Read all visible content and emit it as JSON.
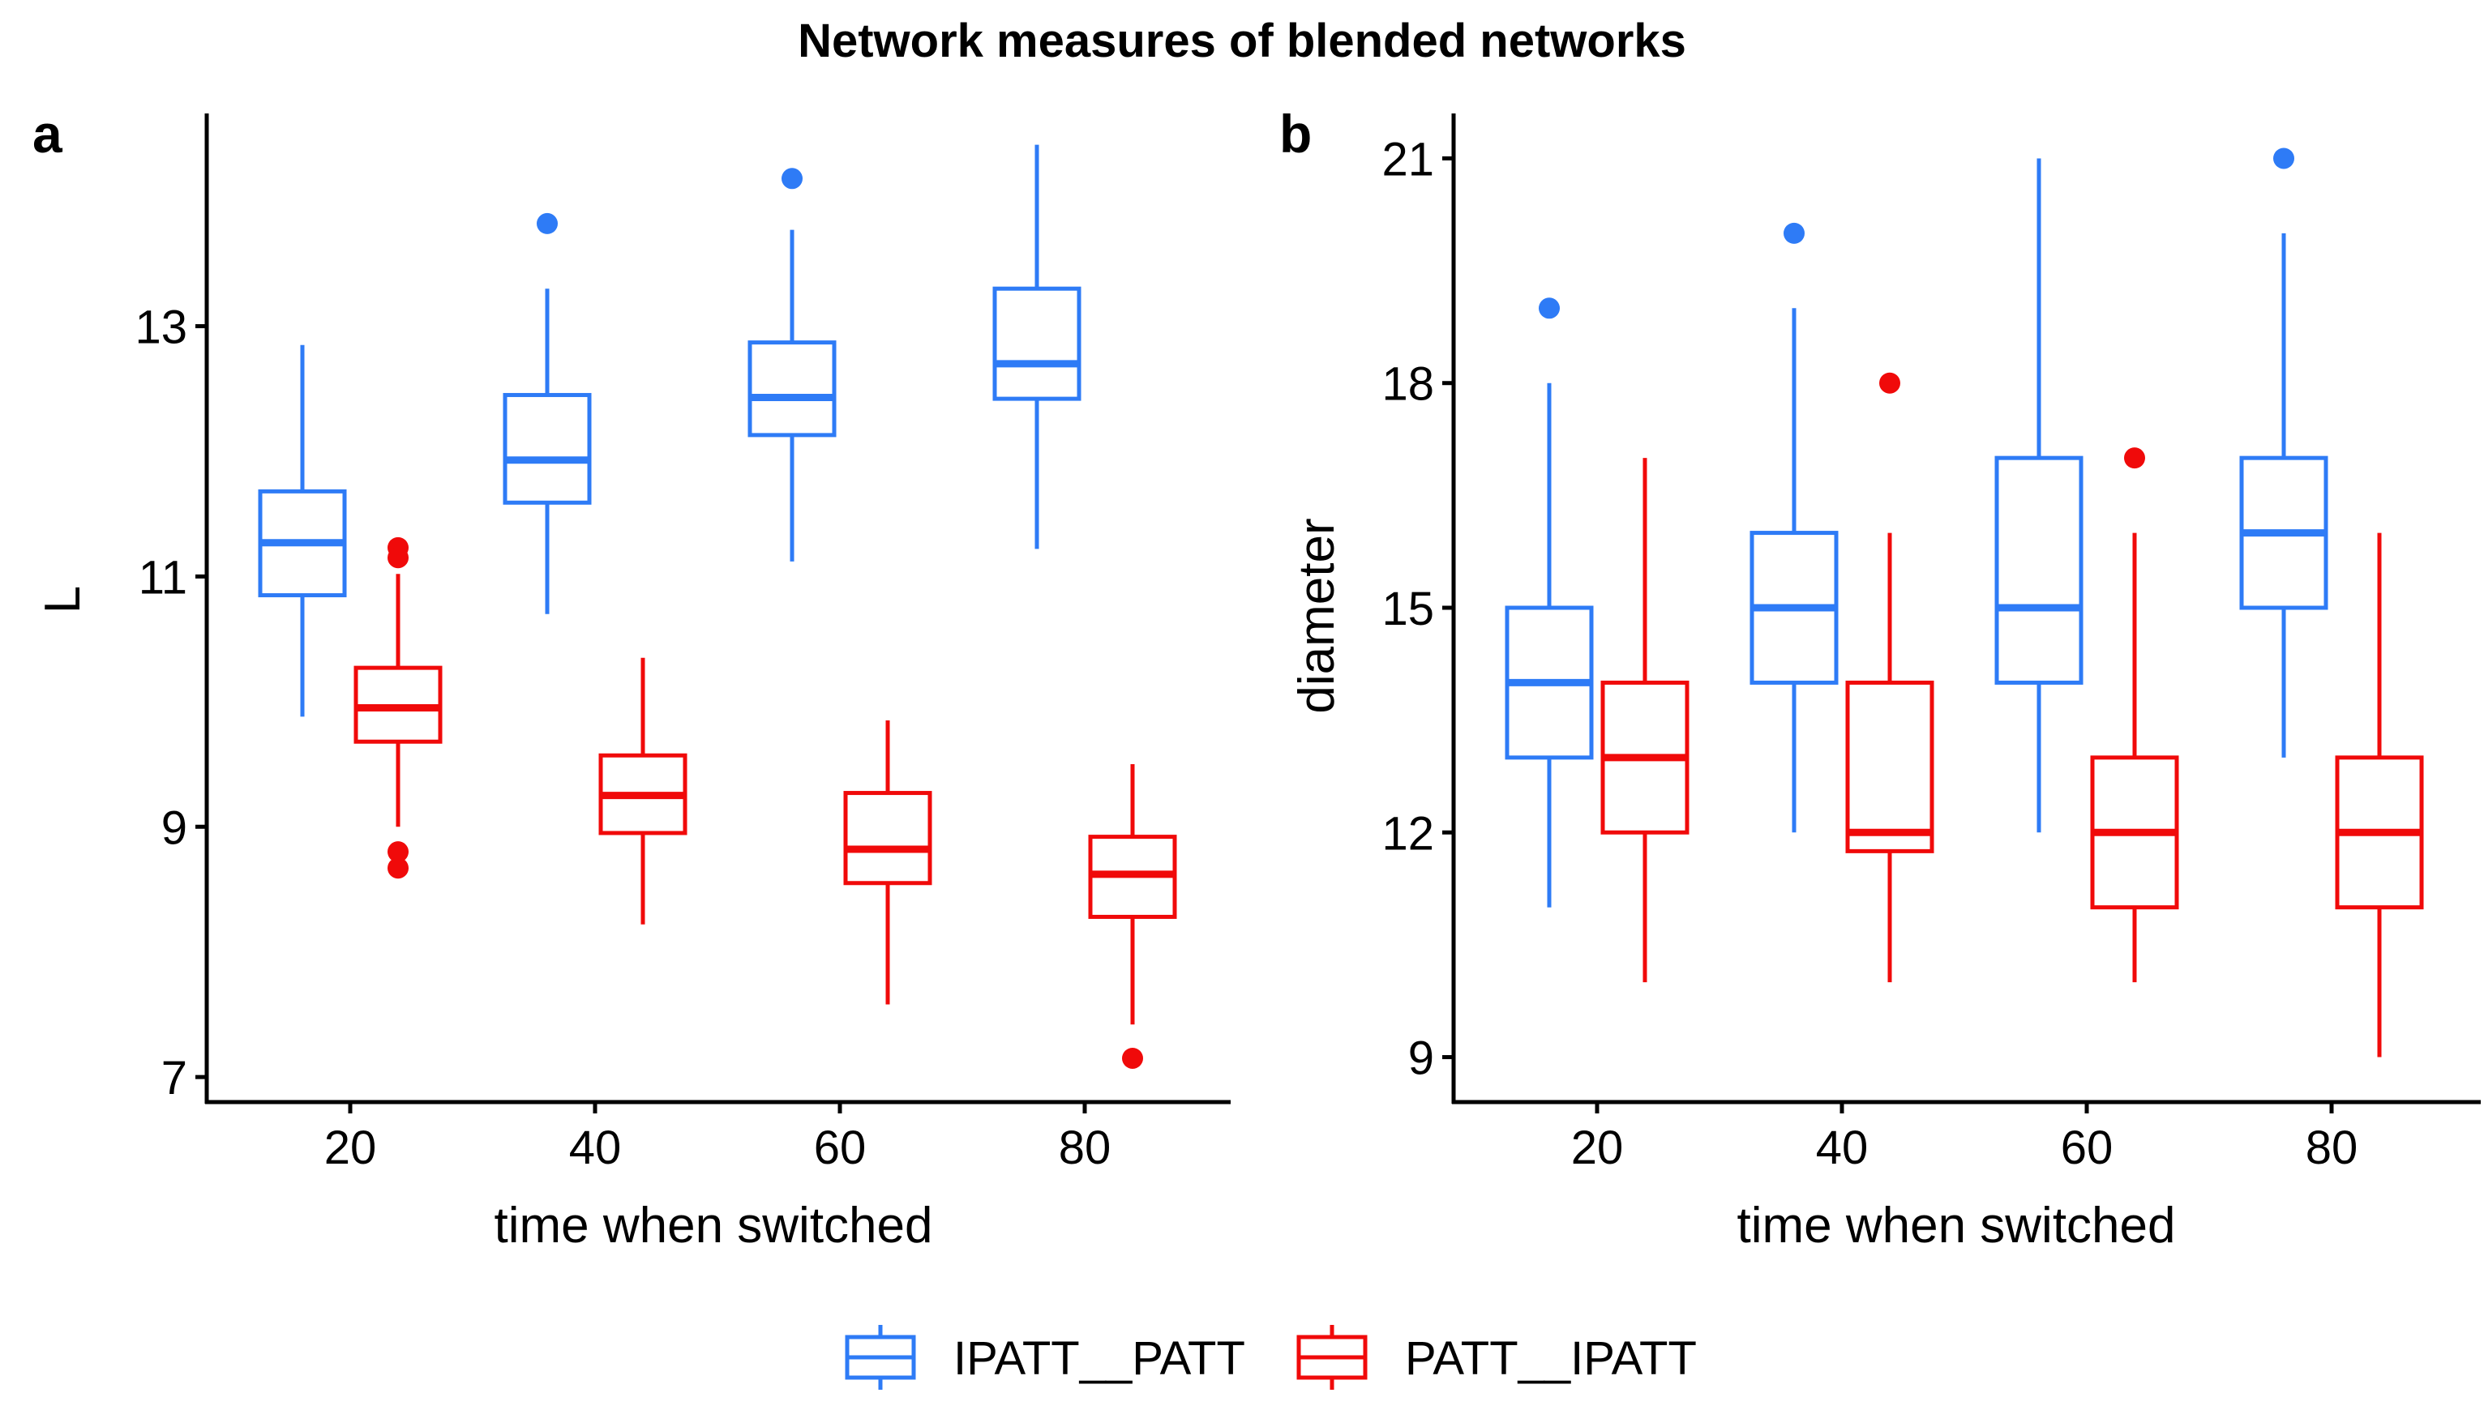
{
  "title": "Network measures of blended networks",
  "legend": [
    {
      "name": "IPATT__PATT",
      "color": "#2E7BF6"
    },
    {
      "name": "PATT__IPATT",
      "color": "#F00A0A"
    }
  ],
  "chart_data": [
    {
      "type": "box",
      "panel": "a",
      "xlabel": "time when switched",
      "ylabel": "L",
      "categories": [
        "20",
        "40",
        "60",
        "80"
      ],
      "ylim": [
        6.8,
        14.7
      ],
      "yticks": [
        7,
        9,
        11,
        13
      ],
      "series": [
        {
          "name": "IPATT__PATT",
          "color": "#2E7BF6",
          "boxes": [
            {
              "min": 9.88,
              "q1": 10.85,
              "median": 11.27,
              "q3": 11.68,
              "max": 12.85,
              "outliers": []
            },
            {
              "min": 10.7,
              "q1": 11.59,
              "median": 11.93,
              "q3": 12.45,
              "max": 13.3,
              "outliers": [
                13.82
              ]
            },
            {
              "min": 11.12,
              "q1": 12.13,
              "median": 12.43,
              "q3": 12.87,
              "max": 13.77,
              "outliers": [
                14.18
              ]
            },
            {
              "min": 11.22,
              "q1": 12.42,
              "median": 12.7,
              "q3": 13.3,
              "max": 14.45,
              "outliers": []
            }
          ]
        },
        {
          "name": "PATT__IPATT",
          "color": "#F00A0A",
          "boxes": [
            {
              "min": 9.0,
              "q1": 9.68,
              "median": 9.95,
              "q3": 10.27,
              "max": 11.02,
              "outliers": [
                11.23,
                11.15,
                8.8,
                8.67
              ]
            },
            {
              "min": 8.22,
              "q1": 8.95,
              "median": 9.25,
              "q3": 9.57,
              "max": 10.35,
              "outliers": []
            },
            {
              "min": 7.58,
              "q1": 8.55,
              "median": 8.82,
              "q3": 9.27,
              "max": 9.85,
              "outliers": []
            },
            {
              "min": 7.42,
              "q1": 8.28,
              "median": 8.62,
              "q3": 8.92,
              "max": 9.5,
              "outliers": [
                7.15
              ]
            }
          ]
        }
      ]
    },
    {
      "type": "box",
      "panel": "b",
      "xlabel": "time when switched",
      "ylabel": "diameter",
      "categories": [
        "20",
        "40",
        "60",
        "80"
      ],
      "ylim": [
        8.4,
        21.6
      ],
      "yticks": [
        9,
        12,
        15,
        18,
        21
      ],
      "series": [
        {
          "name": "IPATT__PATT",
          "color": "#2E7BF6",
          "boxes": [
            {
              "min": 11,
              "q1": 13,
              "median": 14,
              "q3": 15,
              "max": 18,
              "outliers": [
                19
              ]
            },
            {
              "min": 12,
              "q1": 14,
              "median": 15,
              "q3": 16,
              "max": 19,
              "outliers": [
                20
              ]
            },
            {
              "min": 12,
              "q1": 14,
              "median": 15,
              "q3": 17,
              "max": 21,
              "outliers": []
            },
            {
              "min": 13,
              "q1": 15,
              "median": 16,
              "q3": 17,
              "max": 20,
              "outliers": [
                21
              ]
            }
          ]
        },
        {
          "name": "PATT__IPATT",
          "color": "#F00A0A",
          "boxes": [
            {
              "min": 10,
              "q1": 12,
              "median": 13,
              "q3": 14,
              "max": 17,
              "outliers": []
            },
            {
              "min": 10,
              "q1": 11.75,
              "median": 12,
              "q3": 14,
              "max": 16,
              "outliers": [
                18
              ]
            },
            {
              "min": 10,
              "q1": 11,
              "median": 12,
              "q3": 13,
              "max": 16,
              "outliers": [
                17
              ]
            },
            {
              "min": 9,
              "q1": 11,
              "median": 12,
              "q3": 13,
              "max": 16,
              "outliers": []
            }
          ]
        }
      ]
    }
  ]
}
